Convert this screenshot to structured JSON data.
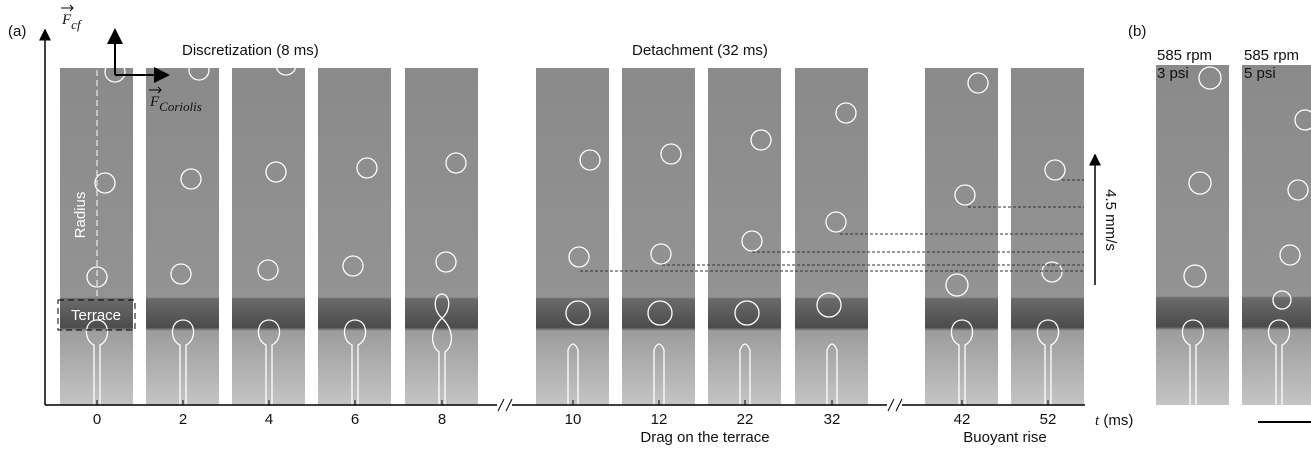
{
  "panel_a": {
    "label": "(a)",
    "force_cf": {
      "symbol": "F",
      "subscript": "cf"
    },
    "force_coriolis": {
      "symbol": "F",
      "subscript": "Coriolis"
    },
    "phases": [
      "Discretization (8 ms)",
      "Detachment (32 ms)"
    ],
    "radius_label": "Radius",
    "terrace_label": "Terrace",
    "frame_times": [
      0,
      2,
      4,
      6,
      8,
      10,
      12,
      22,
      32,
      42,
      52
    ],
    "time_axis_label": {
      "symbol": "t",
      "unit": "(ms)"
    },
    "stages": [
      "Drag on the terrace",
      "Buoyant rise"
    ],
    "velocity_label": "4.5 mm/s"
  },
  "panel_b": {
    "label": "(b)",
    "conditions": [
      {
        "speed": "585 rpm",
        "pressure": "3 psi"
      },
      {
        "speed": "585 rpm",
        "pressure": "5 psi"
      }
    ]
  }
}
